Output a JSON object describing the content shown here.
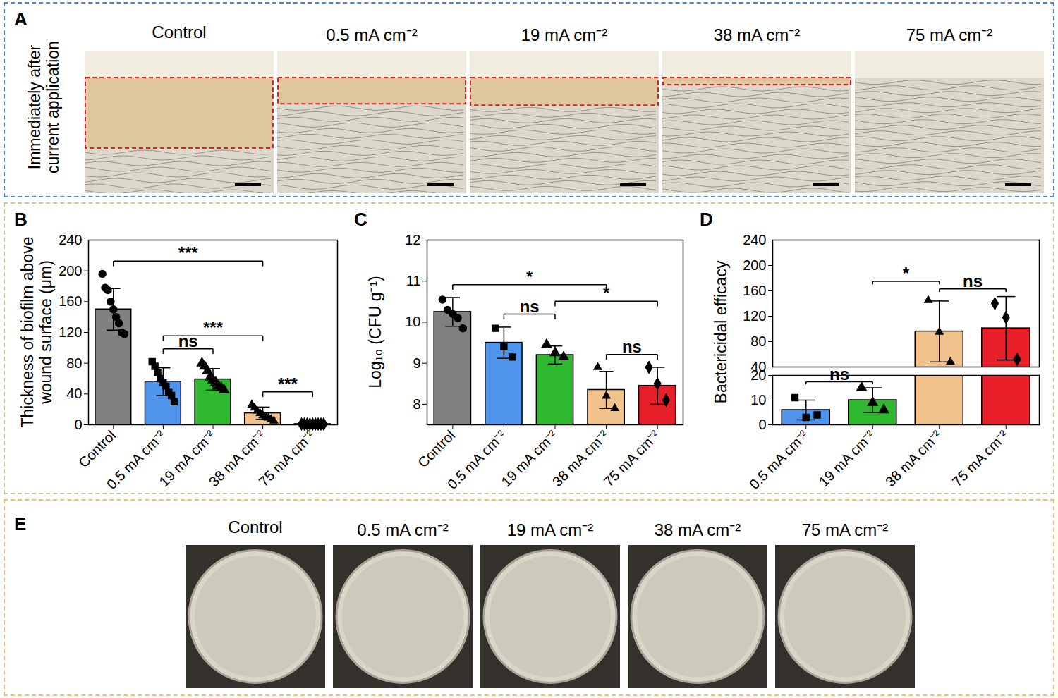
{
  "panel_a": {
    "letter": "A",
    "side_label": "Immediately after current application",
    "labels": [
      "Control",
      "0.5 mA cm⁻²",
      "19 mA cm⁻²",
      "38 mA cm⁻²",
      "75 mA cm⁻²"
    ]
  },
  "chart_data": [
    {
      "letter": "B",
      "type": "bar",
      "ylabel": "Thickness of biofilm above wound surface (μm)",
      "categories": [
        "Control",
        "0.5 mA cm⁻²",
        "19 mA cm⁻²",
        "38 mA cm⁻²",
        "75 mA cm⁻²"
      ],
      "values": [
        150,
        56,
        59,
        15,
        1
      ],
      "errors": [
        27,
        18,
        14,
        8,
        1
      ],
      "points": [
        [
          196,
          178,
          175,
          160,
          150,
          140,
          132,
          120,
          118
        ],
        [
          82,
          76,
          68,
          60,
          55,
          50,
          42,
          38,
          30
        ],
        [
          80,
          76,
          70,
          62,
          58,
          55,
          50,
          48,
          45
        ],
        [
          26,
          22,
          18,
          15,
          12,
          10,
          9,
          7,
          5
        ],
        [
          1,
          1,
          1,
          1,
          1,
          1,
          1,
          1,
          1
        ]
      ],
      "colors": [
        "#808080",
        "#4f95ee",
        "#2eb82e",
        "#f2c28c",
        "#e8202a"
      ],
      "ylim": [
        0,
        240
      ],
      "yticks": [
        0,
        40,
        80,
        120,
        160,
        200,
        240
      ],
      "annotations": [
        {
          "from": "Control",
          "to": "38 mA cm⁻²",
          "text": "***"
        },
        {
          "from": "0.5 mA cm⁻²",
          "to": "19 mA cm⁻²",
          "text": "ns"
        },
        {
          "from": "0.5 mA cm⁻²",
          "to": "38 mA cm⁻²",
          "text": "***"
        },
        {
          "from": "38 mA cm⁻²",
          "to": "75 mA cm⁻²",
          "text": "***"
        }
      ]
    },
    {
      "letter": "C",
      "type": "bar",
      "ylabel": "Log₁₀ (CFU g⁻¹)",
      "categories": [
        "Control",
        "0.5 mA cm⁻²",
        "19 mA cm⁻²",
        "38 mA cm⁻²",
        "75 mA cm⁻²"
      ],
      "values": [
        10.25,
        9.5,
        9.2,
        8.35,
        8.45
      ],
      "errors": [
        0.35,
        0.38,
        0.22,
        0.45,
        0.45
      ],
      "points": [
        [
          10.55,
          10.3,
          10.2,
          10.1,
          9.85
        ],
        [
          9.85,
          9.4,
          9.15
        ],
        [
          9.45,
          9.25,
          9.15
        ],
        [
          8.9,
          8.2,
          7.9
        ],
        [
          8.9,
          8.5,
          8.1
        ]
      ],
      "colors": [
        "#808080",
        "#4f95ee",
        "#2eb82e",
        "#f2c28c",
        "#e8202a"
      ],
      "ylim": [
        7.5,
        12
      ],
      "yticks": [
        8,
        9,
        10,
        11,
        12
      ],
      "annotations": [
        {
          "from": "Control",
          "to": "38 mA cm⁻²",
          "text": "*"
        },
        {
          "from": "19 mA cm⁻²",
          "to": "75 mA cm⁻²",
          "text": "*"
        },
        {
          "from": "0.5 mA cm⁻²",
          "to": "19 mA cm⁻²",
          "text": "ns"
        },
        {
          "from": "38 mA cm⁻²",
          "to": "75 mA cm⁻²",
          "text": "ns"
        }
      ]
    },
    {
      "letter": "D",
      "type": "bar",
      "ylabel": "Bactericidal efficacy",
      "categories": [
        "0.5 mA cm⁻²",
        "19 mA cm⁻²",
        "38 mA cm⁻²",
        "75 mA cm⁻²"
      ],
      "values": [
        6,
        10,
        96,
        101
      ],
      "errors": [
        4,
        5,
        48,
        50
      ],
      "points": [
        [
          11,
          3,
          4
        ],
        [
          15,
          9,
          6
        ],
        [
          145,
          95,
          48
        ],
        [
          140,
          118,
          52
        ]
      ],
      "colors": [
        "#4f95ee",
        "#2eb82e",
        "#f2c28c",
        "#e8202a"
      ],
      "ylim": [
        0,
        240
      ],
      "yticks": [
        0,
        10,
        20,
        40,
        80,
        120,
        160,
        200,
        240
      ],
      "axis_break": [
        20,
        40
      ],
      "annotations": [
        {
          "from": "0.5 mA cm⁻²",
          "to": "19 mA cm⁻²",
          "text": "ns"
        },
        {
          "from": "38 mA cm⁻²",
          "to": "75 mA cm⁻²",
          "text": "ns"
        },
        {
          "from": "19 mA cm⁻²",
          "to": "38 mA cm⁻²",
          "text": "*"
        }
      ]
    }
  ],
  "panel_e": {
    "letter": "E",
    "labels": [
      "Control",
      "0.5 mA cm⁻²",
      "19 mA cm⁻²",
      "38 mA cm⁻²",
      "75 mA cm⁻²"
    ]
  }
}
